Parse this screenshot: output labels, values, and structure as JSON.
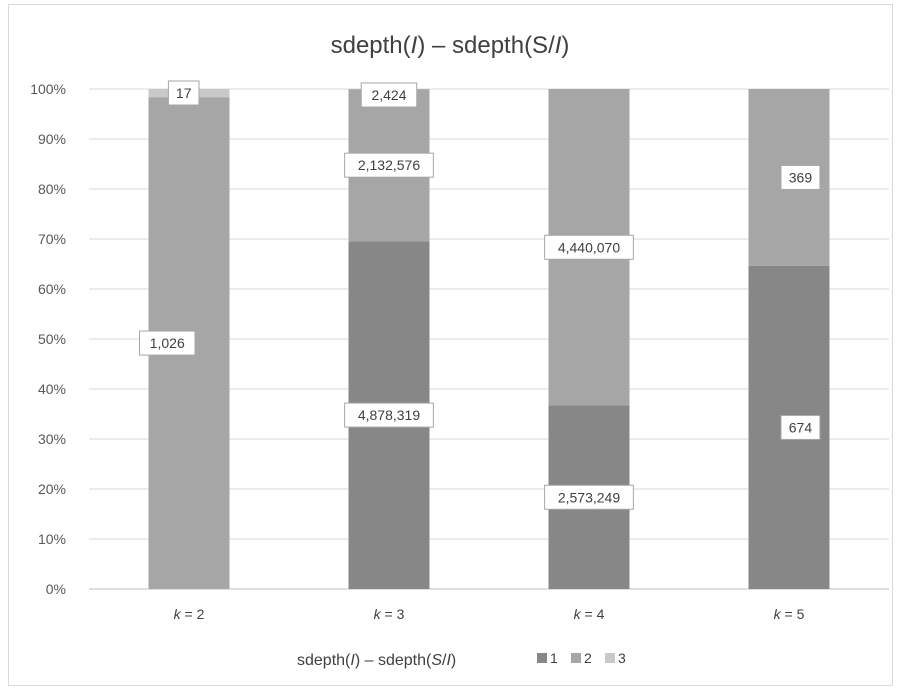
{
  "chart_data": {
    "type": "bar",
    "stacked": "percent",
    "title_parts": [
      "sdepth(",
      "I",
      ") – sdepth(S/",
      "I",
      ")"
    ],
    "categories": [
      "k = 2",
      "k = 3",
      "k = 4",
      "k = 5"
    ],
    "category_label_parts": [
      [
        "k",
        " = 2"
      ],
      [
        "k",
        " = 3"
      ],
      [
        "k",
        " = 4"
      ],
      [
        "k",
        " = 5"
      ]
    ],
    "legend_title_parts": [
      "sdepth(",
      "I",
      ") – sdepth(",
      "S",
      "/",
      "I",
      ")"
    ],
    "legend_position": "bottom",
    "series": [
      {
        "name": "1",
        "values": [
          0,
          4878319,
          2573249,
          674
        ],
        "labels": [
          "",
          "4,878,319",
          "2,573,249",
          "674"
        ],
        "color": "#878787"
      },
      {
        "name": "2",
        "values": [
          1026,
          2132576,
          4440070,
          369
        ],
        "labels": [
          "1,026",
          "2,132,576",
          "4,440,070",
          "369"
        ],
        "color": "#a6a6a6"
      },
      {
        "name": "3",
        "values": [
          17,
          2424,
          0,
          0
        ],
        "labels": [
          "17",
          "2,424",
          "",
          ""
        ],
        "color": "#c9c9c9"
      }
    ],
    "y_ticks": [
      "0%",
      "10%",
      "20%",
      "30%",
      "40%",
      "50%",
      "60%",
      "70%",
      "80%",
      "90%",
      "100%"
    ],
    "ylim": [
      0,
      100
    ],
    "grid": true
  }
}
